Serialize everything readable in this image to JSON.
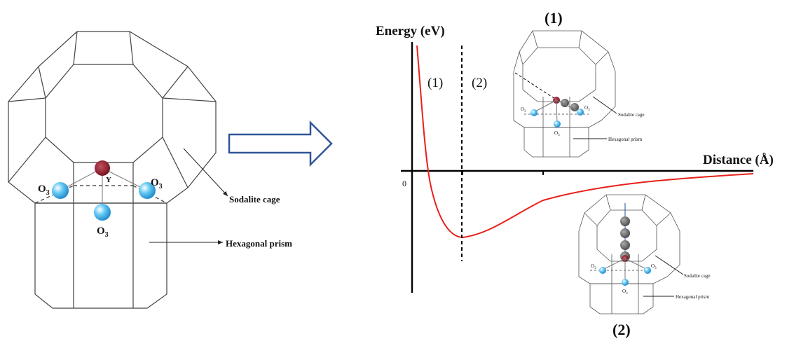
{
  "left_structure": {
    "site_label": "Y",
    "oxygen_left": "O",
    "oxygen_right": "O",
    "oxygen_bottom": "O",
    "oxygen_subscript": "3",
    "sodalite_label": "Sodalite cage",
    "prism_label": "Hexagonal prism"
  },
  "energy_plot": {
    "y_axis_label": "Energy (eV)",
    "x_axis_label": "Distance (Å)",
    "origin_label": "0",
    "region_1_label": "(1)",
    "region_2_label": "(2)"
  },
  "inset_1": {
    "title": "(1)",
    "oxygen_left": "O",
    "oxygen_right": "O",
    "oxygen_bottom": "O",
    "oxygen_subscript": "3",
    "sodalite_label": "Sodalite cage",
    "prism_label": "Hexagonal prism"
  },
  "inset_2": {
    "title": "(2)",
    "oxygen_left": "O",
    "oxygen_right": "O",
    "oxygen_bottom": "O",
    "oxygen_subscript": "3",
    "sodalite_label": "Sodalite cage",
    "prism_label": "Hexagonal prism"
  },
  "colors": {
    "curve": "#e8201a",
    "arrow": "#2f5597",
    "oxygen": "#3cb0ea",
    "yttrium": "#8a1f2a",
    "adsorbate": "#666666"
  }
}
